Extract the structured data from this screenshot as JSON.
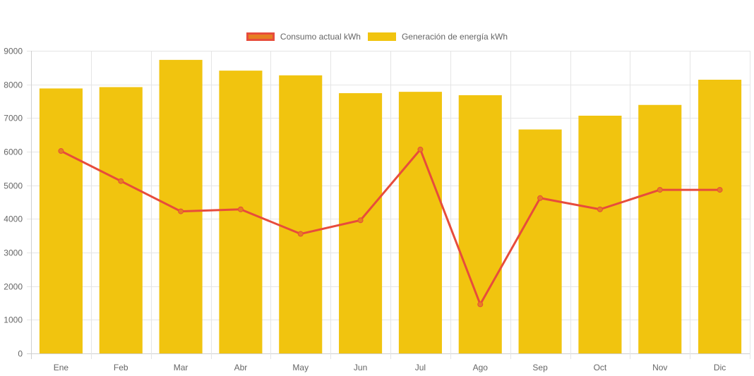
{
  "chart_data": {
    "type": "bar",
    "title": "",
    "xlabel": "",
    "ylabel": "",
    "categories": [
      "Ene",
      "Feb",
      "Mar",
      "Abr",
      "May",
      "Jun",
      "Jul",
      "Ago",
      "Sep",
      "Oct",
      "Nov",
      "Dic"
    ],
    "ylim": [
      0,
      9000
    ],
    "yticks": [
      "0",
      "1000",
      "2000",
      "3000",
      "4000",
      "5000",
      "6000",
      "7000",
      "8000",
      "9000"
    ],
    "grid": true,
    "legend_position": "top-center",
    "series": [
      {
        "name": "Consumo actual kWh",
        "type": "line",
        "color": "#e74c3c",
        "point_color": "#e67e22",
        "values": [
          6020,
          5125,
          4225,
          4285,
          3555,
          3960,
          6065,
          1460,
          4620,
          4285,
          4865,
          4865
        ]
      },
      {
        "name": "Generación de energía kWh",
        "type": "bar",
        "color": "#f1c40f",
        "values": [
          7880,
          7920,
          8730,
          8410,
          8270,
          7740,
          7780,
          7680,
          6660,
          7070,
          7390,
          8140
        ]
      }
    ]
  }
}
